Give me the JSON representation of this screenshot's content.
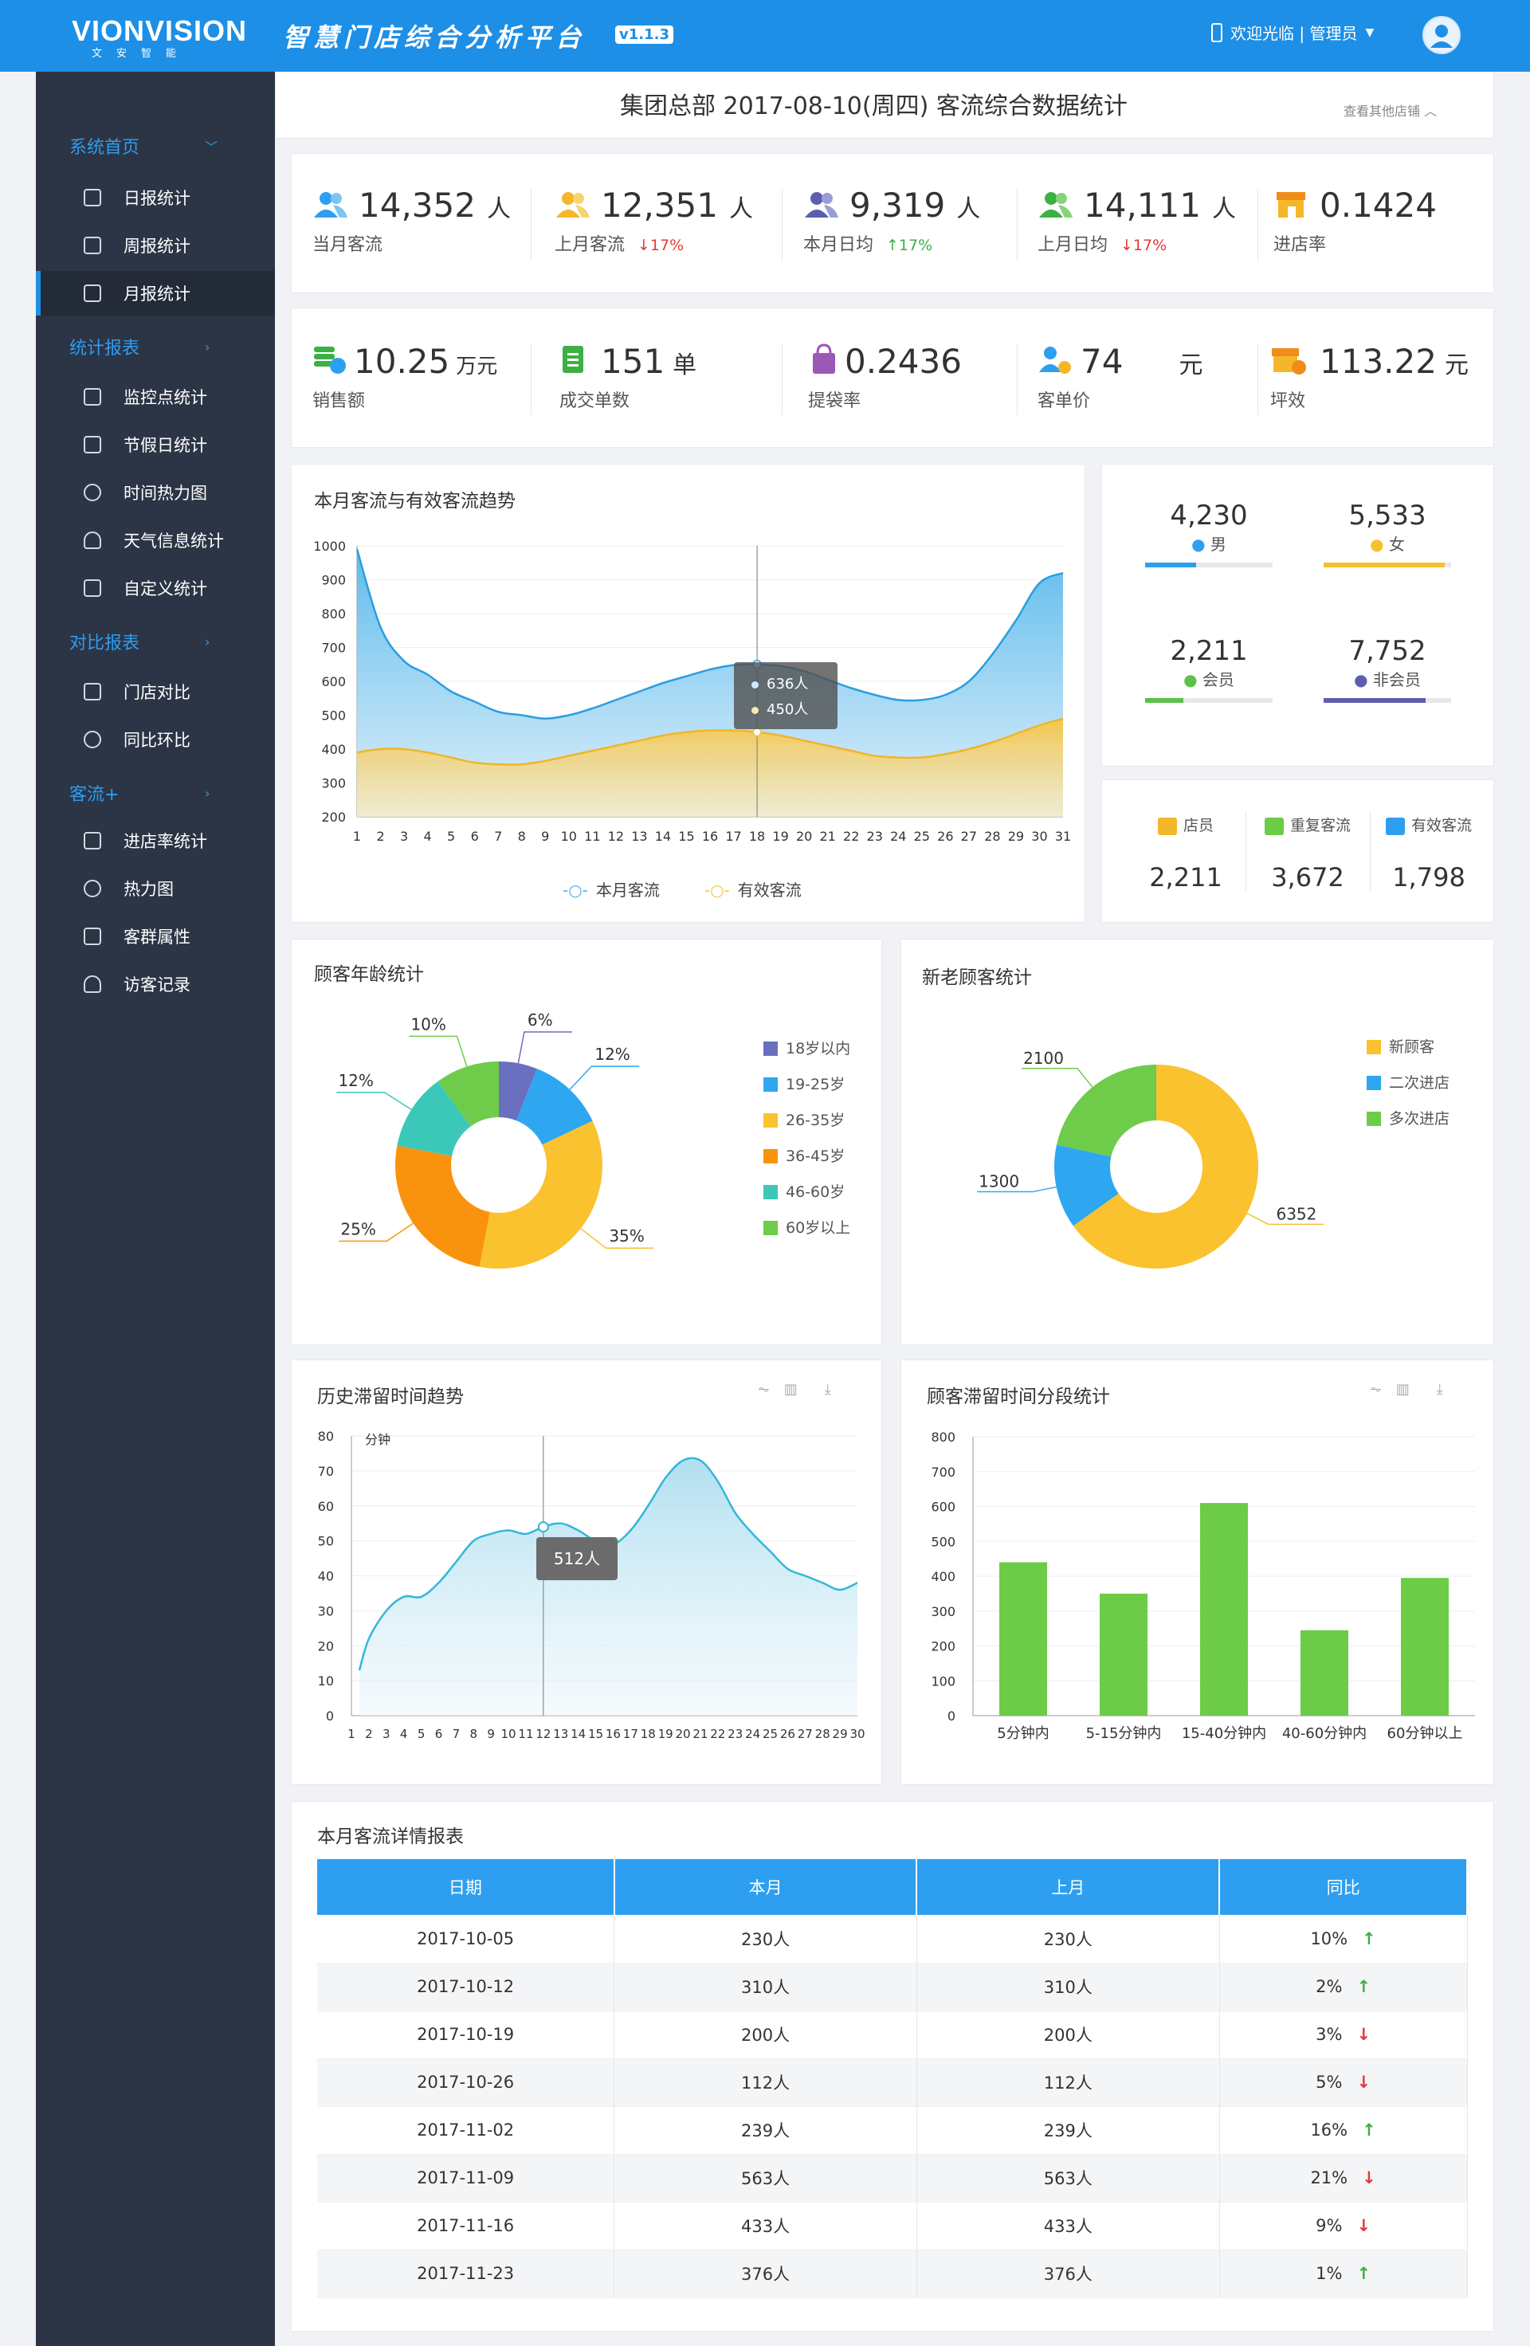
{
  "header": {
    "logo": "VIONVISION",
    "logo_sub": "文安智能",
    "app_title": "智慧门店综合分析平台",
    "version": "v1.1.3",
    "welcome": "欢迎光临 | 管理员",
    "colors": {
      "primary": "#1e8fe6"
    }
  },
  "sidebar": {
    "groups": [
      {
        "label": "系统首页",
        "items": [
          "日报统计",
          "周报统计",
          "月报统计"
        ]
      },
      {
        "label": "统计报表",
        "items": [
          "监控点统计",
          "节假日统计",
          "时间热力图",
          "天气信息统计",
          "自定义统计"
        ]
      },
      {
        "label": "对比报表",
        "items": [
          "门店对比",
          "同比环比"
        ]
      },
      {
        "label": "客流+",
        "items": [
          "进店率统计",
          "热力图",
          "客群属性",
          "访客记录"
        ]
      }
    ],
    "active_item": "月报统计"
  },
  "page": {
    "title": "集团总部 2017-08-10(周四) 客流综合数据统计",
    "other_stores": "查看其他店铺"
  },
  "metrics_row1": [
    {
      "value": "14,352",
      "unit": "人",
      "label": "当月客流",
      "change": ""
    },
    {
      "value": "12,351",
      "unit": "人",
      "label": "上月客流",
      "change": "↓17%",
      "dir": "down"
    },
    {
      "value": "9,319",
      "unit": "人",
      "label": "本月日均",
      "change": "↑17%",
      "dir": "up"
    },
    {
      "value": "14,111",
      "unit": "人",
      "label": "上月日均",
      "change": "↓17%",
      "dir": "down"
    },
    {
      "value": "0.1424",
      "unit": "",
      "label": "进店率",
      "change": ""
    }
  ],
  "metrics_row2": [
    {
      "value": "10.25",
      "unit": "万元",
      "label": "销售额"
    },
    {
      "value": "151",
      "unit": "单",
      "label": "成交单数"
    },
    {
      "value": "0.2436",
      "unit": "",
      "label": "提袋率"
    },
    {
      "value": "74",
      "unit": "元",
      "label": "客单价"
    },
    {
      "value": "113.22",
      "unit": "元",
      "label": "坪效"
    }
  ],
  "demographics": [
    {
      "value": "4,230",
      "label": "男",
      "ratio": 0.4,
      "color": "#2e9ff0"
    },
    {
      "value": "5,533",
      "label": "女",
      "ratio": 0.95,
      "color": "#f5c12f"
    },
    {
      "value": "2,211",
      "label": "会员",
      "ratio": 0.3,
      "color": "#5cc14a"
    },
    {
      "value": "7,752",
      "label": "非会员",
      "ratio": 0.8,
      "color": "#5b5fae"
    }
  ],
  "staff_stats": [
    {
      "label": "店员",
      "value": "2,211"
    },
    {
      "label": "重复客流",
      "value": "3,672"
    },
    {
      "label": "有效客流",
      "value": "1,798"
    }
  ],
  "trend_chart": {
    "title": "本月客流与有效客流趋势",
    "tooltip": [
      "636人",
      "450人"
    ],
    "legend": [
      "本月客流",
      "有效客流"
    ]
  },
  "age_chart": {
    "title": "顾客年龄统计"
  },
  "newold_chart": {
    "title": "新老顾客统计"
  },
  "dwell_trend": {
    "title": "历史滞留时间趋势",
    "tooltip": "512人",
    "unit_label": "分钟"
  },
  "dwell_bar": {
    "title": "顾客滞留时间分段统计"
  },
  "table": {
    "title": "本月客流详情报表",
    "headers": [
      "日期",
      "本月",
      "上月",
      "同比"
    ],
    "rows": [
      {
        "date": "2017-10-05",
        "cur": "230人",
        "prev": "230人",
        "pct": "10%",
        "dir": "up"
      },
      {
        "date": "2017-10-12",
        "cur": "310人",
        "prev": "310人",
        "pct": "2%",
        "dir": "up"
      },
      {
        "date": "2017-10-19",
        "cur": "200人",
        "prev": "200人",
        "pct": "3%",
        "dir": "down"
      },
      {
        "date": "2017-10-26",
        "cur": "112人",
        "prev": "112人",
        "pct": "5%",
        "dir": "down"
      },
      {
        "date": "2017-11-02",
        "cur": "239人",
        "prev": "239人",
        "pct": "16%",
        "dir": "up"
      },
      {
        "date": "2017-11-09",
        "cur": "563人",
        "prev": "563人",
        "pct": "21%",
        "dir": "down"
      },
      {
        "date": "2017-11-16",
        "cur": "433人",
        "prev": "433人",
        "pct": "9%",
        "dir": "down"
      },
      {
        "date": "2017-11-23",
        "cur": "376人",
        "prev": "376人",
        "pct": "1%",
        "dir": "up"
      }
    ]
  },
  "chart_data": [
    {
      "type": "area",
      "title": "本月客流与有效客流趋势",
      "x": [
        1,
        2,
        3,
        4,
        5,
        6,
        7,
        8,
        9,
        10,
        11,
        12,
        13,
        14,
        15,
        16,
        17,
        18,
        19,
        20,
        21,
        22,
        23,
        24,
        25,
        26,
        27,
        28,
        29,
        30,
        31
      ],
      "ylim": [
        200,
        1000
      ],
      "yticks": [
        200,
        300,
        400,
        500,
        600,
        700,
        800,
        900,
        1000
      ],
      "series": [
        {
          "name": "本月客流",
          "color": "#4db3ea",
          "values": [
            990,
            760,
            660,
            620,
            570,
            540,
            510,
            500,
            490,
            500,
            520,
            545,
            570,
            595,
            615,
            635,
            648,
            650,
            645,
            630,
            605,
            580,
            560,
            545,
            545,
            560,
            600,
            680,
            780,
            890,
            920
          ]
        },
        {
          "name": "有效客流",
          "color": "#f7c544",
          "values": [
            390,
            400,
            400,
            390,
            375,
            360,
            355,
            355,
            365,
            380,
            395,
            410,
            425,
            440,
            450,
            455,
            455,
            450,
            440,
            425,
            410,
            395,
            380,
            375,
            375,
            385,
            400,
            420,
            445,
            470,
            490
          ]
        }
      ]
    },
    {
      "type": "pie",
      "title": "顾客年龄统计",
      "labels": [
        "18岁以内",
        "19-25岁",
        "26-35岁",
        "36-45岁",
        "46-60岁",
        "60岁以上"
      ],
      "values": [
        6,
        12,
        35,
        25,
        12,
        10
      ],
      "colors": [
        "#6a6fc0",
        "#2ea7f0",
        "#f9c22e",
        "#f9930e",
        "#3cc8b8",
        "#6ecc4a"
      ],
      "display": [
        "6%",
        "12%",
        "35%",
        "25%",
        "12%",
        "10%"
      ]
    },
    {
      "type": "pie",
      "title": "新老顾客统计",
      "labels": [
        "新顾客",
        "二次进店",
        "多次进店"
      ],
      "values": [
        6352,
        1300,
        2100
      ],
      "colors": [
        "#f9c22e",
        "#2ea7f0",
        "#6ecc4a"
      ]
    },
    {
      "type": "area",
      "title": "历史滞留时间趋势",
      "x": [
        1,
        2,
        3,
        4,
        5,
        6,
        7,
        8,
        9,
        10,
        11,
        12,
        13,
        14,
        15,
        16,
        17,
        18,
        19,
        20,
        21,
        22,
        23,
        24,
        25,
        26,
        27,
        28,
        29,
        30
      ],
      "ylim": [
        0,
        80
      ],
      "yticks": [
        0,
        10,
        20,
        30,
        40,
        50,
        60,
        70,
        80
      ],
      "ylabel": "分钟",
      "series": [
        {
          "name": "",
          "color": "#33b7d8",
          "values": [
            13,
            22,
            30,
            34,
            34,
            38,
            44,
            50,
            52,
            53,
            52,
            54,
            55,
            53,
            50,
            49,
            53,
            60,
            68,
            73,
            73,
            67,
            58,
            52,
            47,
            42,
            40,
            38,
            36,
            38
          ]
        }
      ]
    },
    {
      "type": "bar",
      "title": "顾客滞留时间分段统计",
      "categories": [
        "5分钟内",
        "5-15分钟内",
        "15-40分钟内",
        "40-60分钟内",
        "60分钟以上"
      ],
      "values": [
        440,
        350,
        610,
        245,
        395
      ],
      "ylim": [
        0,
        800
      ],
      "yticks": [
        0,
        100,
        200,
        300,
        400,
        500,
        600,
        700,
        800
      ],
      "color": "#6ccb47"
    }
  ]
}
